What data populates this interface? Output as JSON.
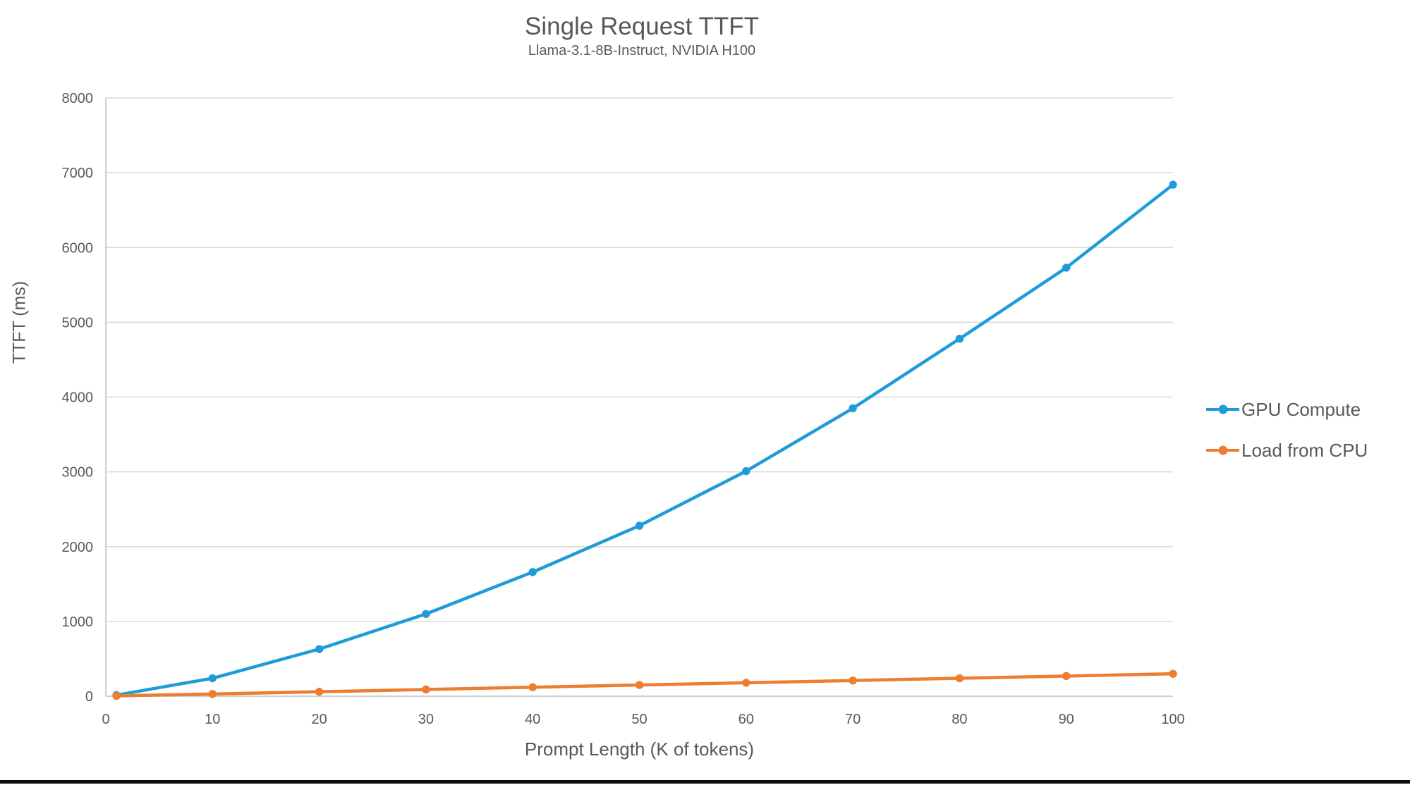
{
  "page": {
    "background": "#ffffff",
    "bottom_bar_color": "#0b0d14"
  },
  "chart_data": {
    "type": "line",
    "title": "Single Request TTFT",
    "subtitle": "Llama-3.1-8B-Instruct, NVIDIA H100",
    "xlabel": "Prompt Length (K of tokens)",
    "ylabel": "TTFT (ms)",
    "xlim": [
      0,
      100
    ],
    "ylim": [
      0,
      8000
    ],
    "x_ticks": [
      0,
      10,
      20,
      30,
      40,
      50,
      60,
      70,
      80,
      90,
      100
    ],
    "y_ticks": [
      0,
      1000,
      2000,
      3000,
      4000,
      5000,
      6000,
      7000,
      8000
    ],
    "grid": "horizontal-only",
    "gridline_color": "#d9d9d9",
    "axis_line_color": "#bfbfbf",
    "tick_label_color": "#595959",
    "legend_position": "right",
    "x": [
      1,
      10,
      20,
      30,
      40,
      50,
      60,
      70,
      80,
      90,
      100
    ],
    "series": [
      {
        "name": "GPU Compute",
        "color": "#1e9cd8",
        "marker": "circle",
        "values": [
          15,
          240,
          630,
          1100,
          1660,
          2280,
          3010,
          3850,
          4780,
          5730,
          6840
        ]
      },
      {
        "name": "Load from CPU",
        "color": "#ed7d31",
        "marker": "circle",
        "values": [
          5,
          30,
          60,
          90,
          120,
          150,
          180,
          210,
          240,
          270,
          300
        ]
      }
    ]
  }
}
